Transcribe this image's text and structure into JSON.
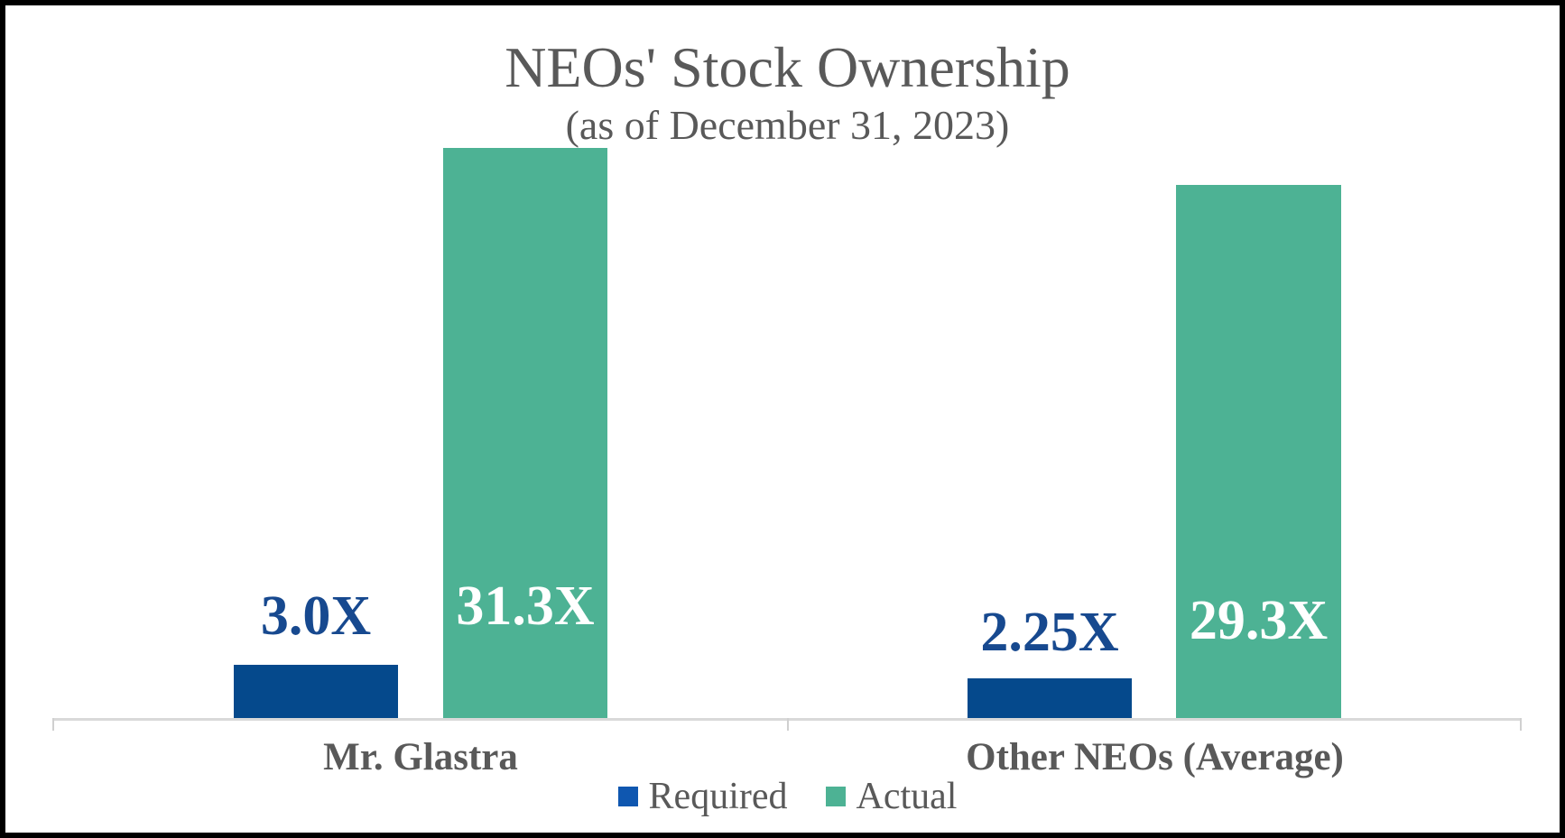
{
  "frame": {
    "border_color": "#000000",
    "background_color": "#FFFFFF"
  },
  "chart_data": {
    "type": "bar",
    "title": "NEOs' Stock Ownership",
    "subtitle": "(as of December 31, 2023)",
    "categories": [
      "Mr. Glastra",
      "Other NEOs (Average)"
    ],
    "series": [
      {
        "name": "Required",
        "values": [
          3.0,
          2.25
        ],
        "data_labels": [
          "3.0X",
          "2.25X"
        ],
        "bar_color": "#05498C",
        "data_label_color": "#17498F",
        "legend_marker_color": "#0F57B0"
      },
      {
        "name": "Actual",
        "values": [
          31.3,
          29.3
        ],
        "data_labels": [
          "31.3X",
          "29.3X"
        ],
        "bar_color": "#4DB294",
        "data_label_color": "#FFFFFF",
        "legend_marker_color": "#4DB294"
      }
    ],
    "ylim": [
      0,
      31.3
    ],
    "grid": false,
    "y_axis_visible": false,
    "legend_position": "bottom",
    "axis_color": "#D9D9D9",
    "text_color": "#595959"
  }
}
